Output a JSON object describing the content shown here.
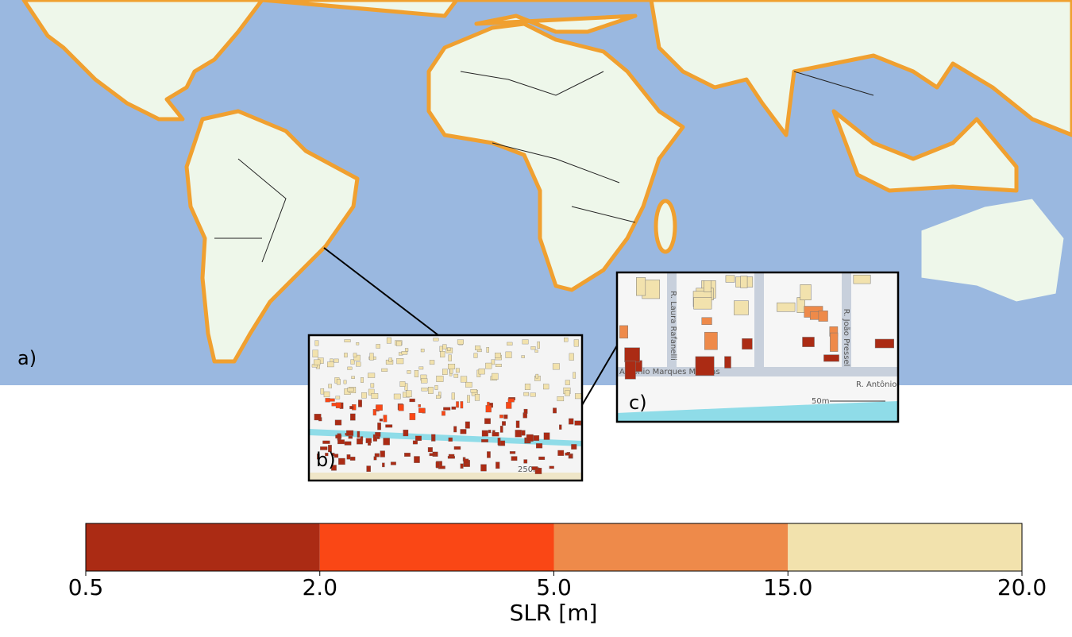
{
  "panels": {
    "a": "a)",
    "b": "b)",
    "c": "c)",
    "b_scale": "250m",
    "c_scale": "50m",
    "c_streets": [
      "R. Laura Rafanelli",
      "R. João Pressel",
      "Antônio Marques Mathias",
      "R. Antônio"
    ]
  },
  "colorbar": {
    "label": "SLR [m]",
    "ticks": [
      0.5,
      {
        "value": 2,
        "label": "2.0"
      },
      {
        "value": 5,
        "label": "5.0"
      },
      {
        "value": 15,
        "label": "15.0"
      },
      {
        "value": 20,
        "label": "20.0"
      }
    ],
    "colors": [
      "#ab2b14",
      "#fa4715",
      "#ee8a4a",
      "#f2e2ad"
    ]
  }
}
